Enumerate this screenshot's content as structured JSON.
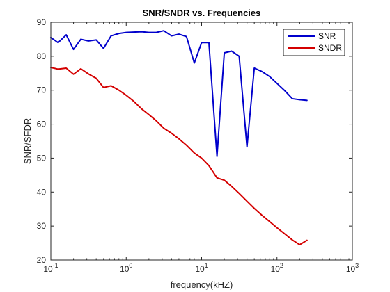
{
  "chart_data": {
    "type": "line",
    "title": "SNR/SNDR vs. Frequencies",
    "xlabel": "frequency(kHZ)",
    "ylabel": "SNR/SFDR",
    "xscale": "log",
    "xlim": [
      0.1,
      1000
    ],
    "ylim": [
      20,
      90
    ],
    "yticks": [
      20,
      30,
      40,
      50,
      60,
      70,
      80,
      90
    ],
    "xticks": [
      {
        "value": 0.1,
        "base": "10",
        "exp": "-1"
      },
      {
        "value": 1,
        "base": "10",
        "exp": "0"
      },
      {
        "value": 10,
        "base": "10",
        "exp": "1"
      },
      {
        "value": 100,
        "base": "10",
        "exp": "2"
      },
      {
        "value": 1000,
        "base": "10",
        "exp": "3"
      }
    ],
    "grid": false,
    "legend": "top-right",
    "series": [
      {
        "name": "SNR",
        "color": "#0000cc",
        "x": [
          0.1,
          0.125,
          0.16,
          0.2,
          0.25,
          0.315,
          0.4,
          0.5,
          0.63,
          0.8,
          1.0,
          1.25,
          1.6,
          2.0,
          2.5,
          3.15,
          4.0,
          5.0,
          6.3,
          8.0,
          10.0,
          12.5,
          16.0,
          20.0,
          25.0,
          31.5,
          40.0,
          50.0,
          63.0,
          80.0,
          100.0,
          125.0,
          160.0,
          200.0,
          250.0
        ],
        "y": [
          85.5,
          84.0,
          86.3,
          82.0,
          85.0,
          84.5,
          84.8,
          82.3,
          86.0,
          86.7,
          87.0,
          87.1,
          87.2,
          87.0,
          87.0,
          87.5,
          86.0,
          86.5,
          85.8,
          78.0,
          84.0,
          84.0,
          50.5,
          81.0,
          81.5,
          80.0,
          53.3,
          76.5,
          75.5,
          74.0,
          72.0,
          70.0,
          67.5,
          67.2,
          67.0
        ]
      },
      {
        "name": "SNDR",
        "color": "#d40000",
        "x": [
          0.1,
          0.125,
          0.16,
          0.2,
          0.25,
          0.315,
          0.4,
          0.5,
          0.63,
          0.8,
          1.0,
          1.25,
          1.6,
          2.0,
          2.5,
          3.15,
          4.0,
          5.0,
          6.3,
          8.0,
          10.0,
          12.5,
          16.0,
          20.0,
          25.0,
          31.5,
          40.0,
          50.0,
          63.0,
          80.0,
          100.0,
          125.0,
          160.0,
          200.0,
          250.0
        ],
        "y": [
          76.7,
          76.2,
          76.5,
          74.7,
          76.3,
          74.8,
          73.5,
          70.8,
          71.3,
          70.0,
          68.5,
          66.8,
          64.5,
          62.8,
          61.0,
          58.8,
          57.3,
          55.7,
          53.8,
          51.5,
          50.0,
          47.8,
          44.2,
          43.5,
          41.7,
          39.6,
          37.3,
          35.2,
          33.2,
          31.3,
          29.5,
          27.8,
          25.9,
          24.5,
          25.8
        ]
      }
    ]
  }
}
